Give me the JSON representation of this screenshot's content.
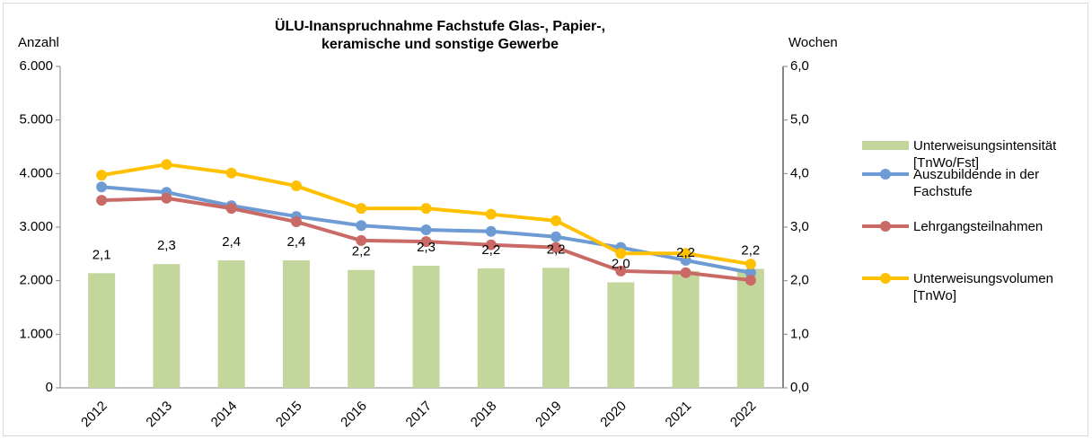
{
  "chart_data": {
    "type": "bar-line",
    "title": "ÜLU-Inanspruchnahme Fachstufe Glas-, Papier-, keramische und sonstige Gewerbe",
    "y_label": "Anzahl",
    "y2_label": "Wochen",
    "categories": [
      "2012",
      "2013",
      "2014",
      "2015",
      "2016",
      "2017",
      "2018",
      "2019",
      "2020",
      "2021",
      "2022"
    ],
    "series": [
      {
        "name": "Unterweisungsintensität [TnWo/Fst]",
        "type": "bar",
        "axis": "y2",
        "color": "#c3d69b",
        "values": [
          2.14,
          2.31,
          2.38,
          2.38,
          2.2,
          2.28,
          2.23,
          2.24,
          1.97,
          2.18,
          2.22
        ],
        "value_labels": [
          "2,1",
          "2,3",
          "2,4",
          "2,4",
          "2,2",
          "2,3",
          "2,2",
          "2,2",
          "2,0",
          "2,2",
          "2,2"
        ]
      },
      {
        "name": "Auszubildende in der Fachstufe",
        "type": "line",
        "color": "#6f9bd4",
        "values": [
          3750,
          3650,
          3400,
          3200,
          3030,
          2950,
          2920,
          2820,
          2620,
          2380,
          2150
        ]
      },
      {
        "name": "Lehrgangsteilnahmen",
        "type": "line",
        "color": "#c96a67",
        "values": [
          3500,
          3540,
          3350,
          3100,
          2750,
          2730,
          2670,
          2620,
          2180,
          2150,
          2010
        ]
      },
      {
        "name": "Unterweisungsvolumen [TnWo]",
        "type": "line",
        "color": "#ffc000",
        "values": [
          3970,
          4170,
          4010,
          3770,
          3350,
          3350,
          3240,
          3120,
          2510,
          2510,
          2310
        ]
      }
    ],
    "ylim": [
      0,
      6000
    ],
    "yticks": [
      0,
      {
        "value": 1000,
        "label": "1.000"
      },
      {
        "value": 2000,
        "label": "2.000"
      },
      {
        "value": 3000,
        "label": "3.000"
      },
      {
        "value": 4000,
        "label": "4.000"
      },
      {
        "value": 5000,
        "label": "5.000"
      },
      {
        "value": 6000,
        "label": "6.000"
      }
    ],
    "y2lim": [
      0,
      6
    ],
    "y2ticks": [
      {
        "value": 0,
        "label": "0,0"
      },
      {
        "value": 1,
        "label": "1,0"
      },
      {
        "value": 2,
        "label": "2,0"
      },
      {
        "value": 3,
        "label": "3,0"
      },
      {
        "value": 4,
        "label": "4,0"
      },
      {
        "value": 5,
        "label": "5,0"
      },
      {
        "value": 6,
        "label": "6,0"
      }
    ],
    "legend": "right"
  }
}
